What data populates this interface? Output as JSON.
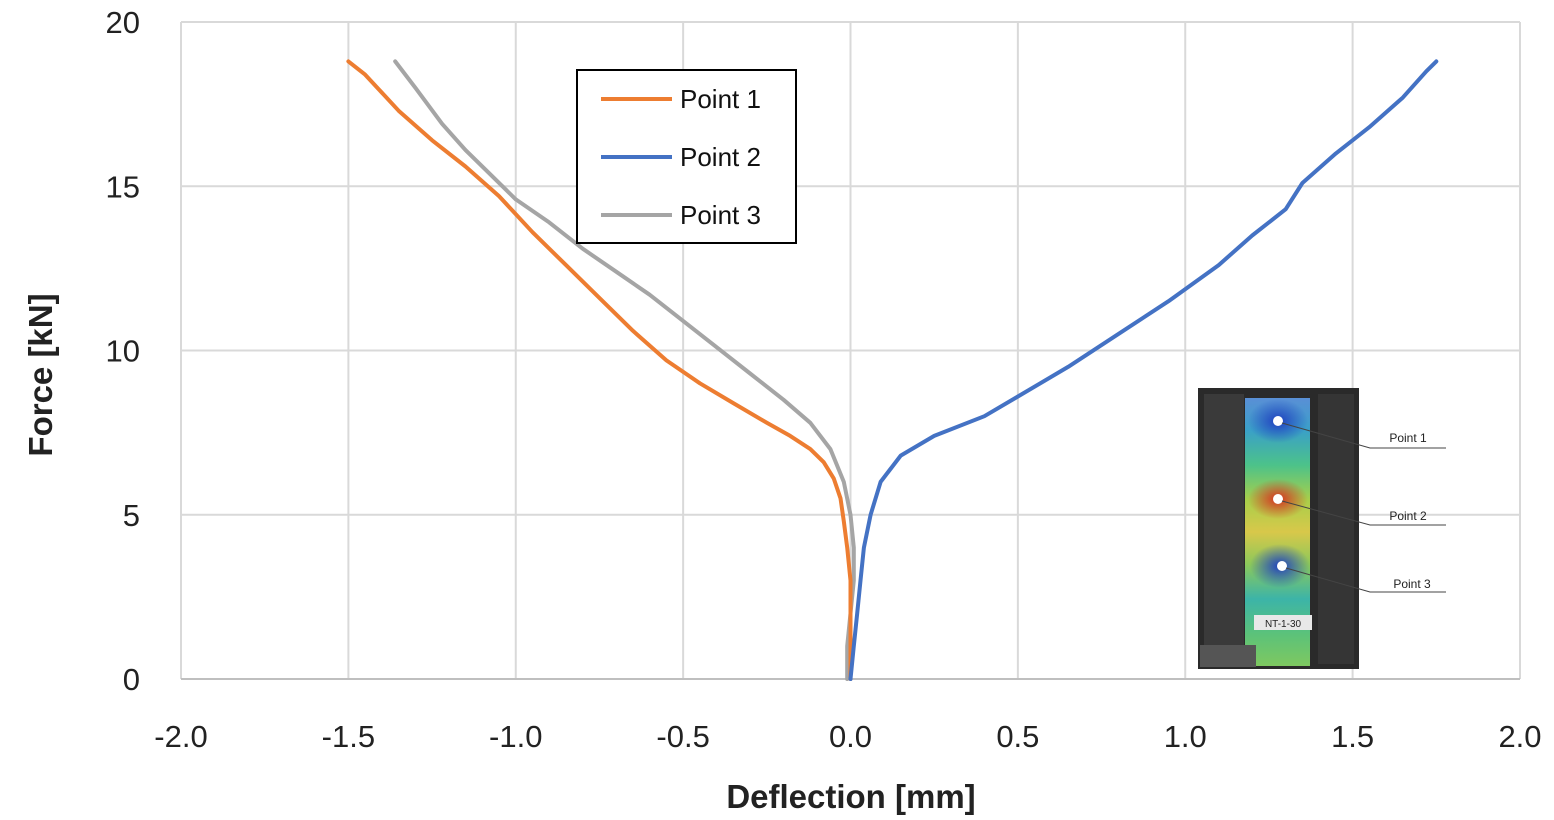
{
  "chart_data": {
    "type": "line",
    "xlabel": "Deflection [mm]",
    "ylabel": "Force [kN]",
    "xlim": [
      -2.0,
      2.0
    ],
    "ylim": [
      0,
      20
    ],
    "xticks": [
      "-2.0",
      "-1.5",
      "-1.0",
      "-0.5",
      "0.0",
      "0.5",
      "1.0",
      "1.5",
      "2.0"
    ],
    "yticks": [
      "0",
      "5",
      "10",
      "15",
      "20"
    ],
    "grid": true,
    "legend_position": "top-left",
    "series": [
      {
        "name": "Point 1",
        "color": "#ED7D31",
        "x": [
          0.0,
          0.0,
          0.0,
          0.0,
          -0.01,
          -0.02,
          -0.03,
          -0.05,
          -0.08,
          -0.12,
          -0.18,
          -0.25,
          -0.35,
          -0.45,
          -0.55,
          -0.65,
          -0.75,
          -0.85,
          -0.95,
          -1.05,
          -1.15,
          -1.25,
          -1.35,
          -1.45,
          -1.5
        ],
        "y": [
          0.0,
          1.0,
          2.0,
          3.0,
          4.0,
          4.8,
          5.5,
          6.1,
          6.6,
          7.0,
          7.4,
          7.8,
          8.4,
          9.0,
          9.7,
          10.6,
          11.6,
          12.6,
          13.6,
          14.7,
          15.6,
          16.4,
          17.3,
          18.4,
          18.8
        ]
      },
      {
        "name": "Point 2",
        "color": "#4472C4",
        "x": [
          0.0,
          0.01,
          0.02,
          0.03,
          0.04,
          0.06,
          0.09,
          0.15,
          0.25,
          0.4,
          0.5,
          0.65,
          0.8,
          0.95,
          1.1,
          1.2,
          1.3,
          1.35,
          1.45,
          1.55,
          1.65,
          1.72,
          1.75
        ],
        "y": [
          0.0,
          1.0,
          2.0,
          3.0,
          4.0,
          5.0,
          6.0,
          6.8,
          7.4,
          8.0,
          8.6,
          9.5,
          10.5,
          11.5,
          12.6,
          13.5,
          14.3,
          15.1,
          16.0,
          16.8,
          17.7,
          18.5,
          18.8
        ]
      },
      {
        "name": "Point 3",
        "color": "#A5A5A5",
        "x": [
          -0.01,
          -0.01,
          0.0,
          0.01,
          0.01,
          0.0,
          -0.02,
          -0.06,
          -0.12,
          -0.2,
          -0.3,
          -0.4,
          -0.5,
          -0.6,
          -0.7,
          -0.8,
          -0.9,
          -1.0,
          -1.08,
          -1.15,
          -1.22,
          -1.3,
          -1.36
        ],
        "y": [
          0.0,
          1.0,
          2.0,
          3.0,
          4.0,
          5.0,
          6.0,
          7.0,
          7.8,
          8.5,
          9.3,
          10.1,
          10.9,
          11.7,
          12.4,
          13.1,
          13.9,
          14.6,
          15.4,
          16.1,
          16.9,
          18.0,
          18.8
        ]
      }
    ],
    "inset": {
      "labels": [
        "Point 1",
        "Point 2",
        "Point 3"
      ],
      "specimen_text": "NT-1-30"
    }
  }
}
